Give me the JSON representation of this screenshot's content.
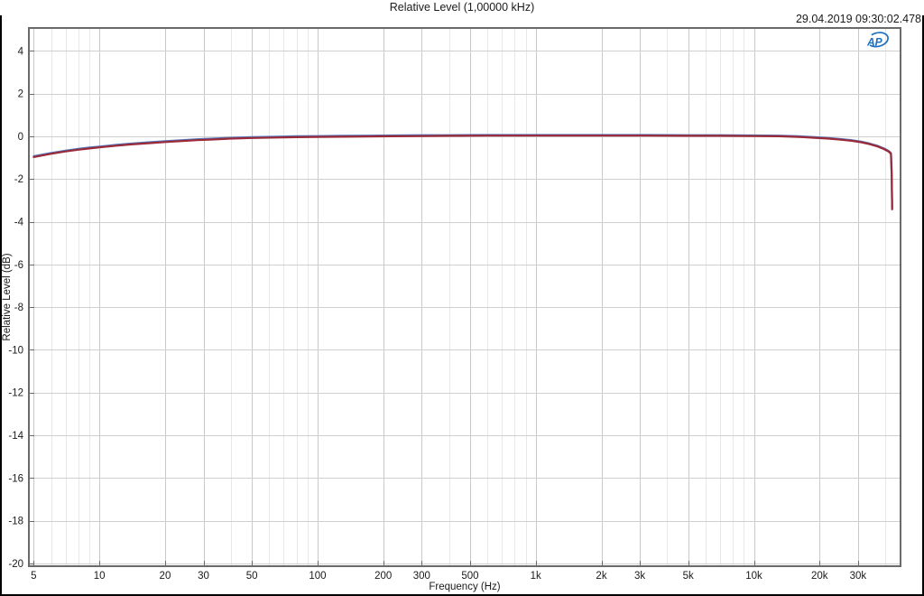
{
  "header": {
    "title": "Relative Level (1,00000 kHz)",
    "timestamp": "29.04.2019 09:30:02.478"
  },
  "logo": {
    "text": "AP",
    "color": "#1a6fc0"
  },
  "chart_data": {
    "type": "line",
    "title": "Relative Level (1,00000 kHz)",
    "x_axis": {
      "label": "Frequency (Hz)",
      "scale": "log",
      "min": 4.75,
      "max": 47000,
      "ticks": [
        {
          "value": 5,
          "label": "5"
        },
        {
          "value": 10,
          "label": "10"
        },
        {
          "value": 20,
          "label": "20"
        },
        {
          "value": 30,
          "label": "30"
        },
        {
          "value": 50,
          "label": "50"
        },
        {
          "value": 100,
          "label": "100"
        },
        {
          "value": 200,
          "label": "200"
        },
        {
          "value": 300,
          "label": "300"
        },
        {
          "value": 500,
          "label": "500"
        },
        {
          "value": 1000,
          "label": "1k"
        },
        {
          "value": 2000,
          "label": "2k"
        },
        {
          "value": 3000,
          "label": "3k"
        },
        {
          "value": 5000,
          "label": "5k"
        },
        {
          "value": 10000,
          "label": "10k"
        },
        {
          "value": 20000,
          "label": "20k"
        },
        {
          "value": 30000,
          "label": "30k"
        }
      ],
      "minor_ticks": [
        6,
        7,
        8,
        9,
        40,
        60,
        70,
        80,
        90,
        400,
        600,
        700,
        800,
        900,
        4000,
        6000,
        7000,
        8000,
        9000,
        40000
      ]
    },
    "y_axis": {
      "label": "Relative Level (dB)",
      "min": -20.13,
      "max": 5.07,
      "ticks": [
        4,
        2,
        0,
        -2,
        -4,
        -6,
        -8,
        -10,
        -12,
        -14,
        -16,
        -18,
        -20
      ]
    },
    "grid": {
      "horizontal_color": "#cfcfcf",
      "major_vertical_color": "#c9c9c9",
      "minor_vertical_color": "#e8e8e8",
      "border_color": "#6a6a6a",
      "background": "#ffffff"
    },
    "series": [
      {
        "id": "trace-blue",
        "color": "#5577bb",
        "width": 2.2,
        "points": [
          [
            5,
            -0.93
          ],
          [
            6,
            -0.78
          ],
          [
            7,
            -0.67
          ],
          [
            8,
            -0.59
          ],
          [
            9,
            -0.53
          ],
          [
            10,
            -0.48
          ],
          [
            12,
            -0.4
          ],
          [
            14,
            -0.34
          ],
          [
            17,
            -0.28
          ],
          [
            20,
            -0.23
          ],
          [
            24,
            -0.18
          ],
          [
            28,
            -0.14
          ],
          [
            33,
            -0.11
          ],
          [
            40,
            -0.07
          ],
          [
            50,
            -0.04
          ],
          [
            65,
            -0.02
          ],
          [
            80,
            0
          ],
          [
            100,
            0.01
          ],
          [
            130,
            0.02
          ],
          [
            170,
            0.03
          ],
          [
            220,
            0.04
          ],
          [
            300,
            0.05
          ],
          [
            400,
            0.05
          ],
          [
            600,
            0.06
          ],
          [
            1000,
            0.06
          ],
          [
            1500,
            0.06
          ],
          [
            2200,
            0.06
          ],
          [
            3300,
            0.06
          ],
          [
            5000,
            0.05
          ],
          [
            7000,
            0.05
          ],
          [
            10000,
            0.04
          ],
          [
            13000,
            0.03
          ],
          [
            16000,
            0
          ],
          [
            19000,
            -0.04
          ],
          [
            22000,
            -0.08
          ],
          [
            25000,
            -0.13
          ],
          [
            28000,
            -0.18
          ],
          [
            31000,
            -0.25
          ],
          [
            34000,
            -0.34
          ],
          [
            37000,
            -0.45
          ],
          [
            39500,
            -0.57
          ],
          [
            41500,
            -0.69
          ],
          [
            42500,
            -0.79
          ],
          [
            42800,
            -1.75
          ],
          [
            43000,
            -3.36
          ]
        ]
      },
      {
        "id": "trace-red",
        "color": "#9a2a38",
        "width": 2.2,
        "points": [
          [
            5,
            -0.97
          ],
          [
            6,
            -0.82
          ],
          [
            7,
            -0.71
          ],
          [
            8,
            -0.63
          ],
          [
            9,
            -0.57
          ],
          [
            10,
            -0.52
          ],
          [
            12,
            -0.44
          ],
          [
            14,
            -0.38
          ],
          [
            17,
            -0.32
          ],
          [
            20,
            -0.27
          ],
          [
            24,
            -0.22
          ],
          [
            28,
            -0.18
          ],
          [
            33,
            -0.15
          ],
          [
            40,
            -0.11
          ],
          [
            50,
            -0.08
          ],
          [
            65,
            -0.06
          ],
          [
            80,
            -0.04
          ],
          [
            100,
            -0.03
          ],
          [
            130,
            -0.02
          ],
          [
            170,
            -0.01
          ],
          [
            220,
            0
          ],
          [
            300,
            0.01
          ],
          [
            400,
            0.02
          ],
          [
            600,
            0.03
          ],
          [
            1000,
            0.03
          ],
          [
            1500,
            0.03
          ],
          [
            2200,
            0.03
          ],
          [
            3300,
            0.03
          ],
          [
            5000,
            0.02
          ],
          [
            7000,
            0.02
          ],
          [
            10000,
            0.01
          ],
          [
            13000,
            0
          ],
          [
            16000,
            -0.03
          ],
          [
            19000,
            -0.07
          ],
          [
            22000,
            -0.11
          ],
          [
            25000,
            -0.16
          ],
          [
            28000,
            -0.21
          ],
          [
            31000,
            -0.28
          ],
          [
            34000,
            -0.37
          ],
          [
            37000,
            -0.48
          ],
          [
            39500,
            -0.6
          ],
          [
            41500,
            -0.72
          ],
          [
            42500,
            -0.82
          ],
          [
            42800,
            -1.8
          ],
          [
            43000,
            -3.42
          ]
        ]
      }
    ]
  }
}
